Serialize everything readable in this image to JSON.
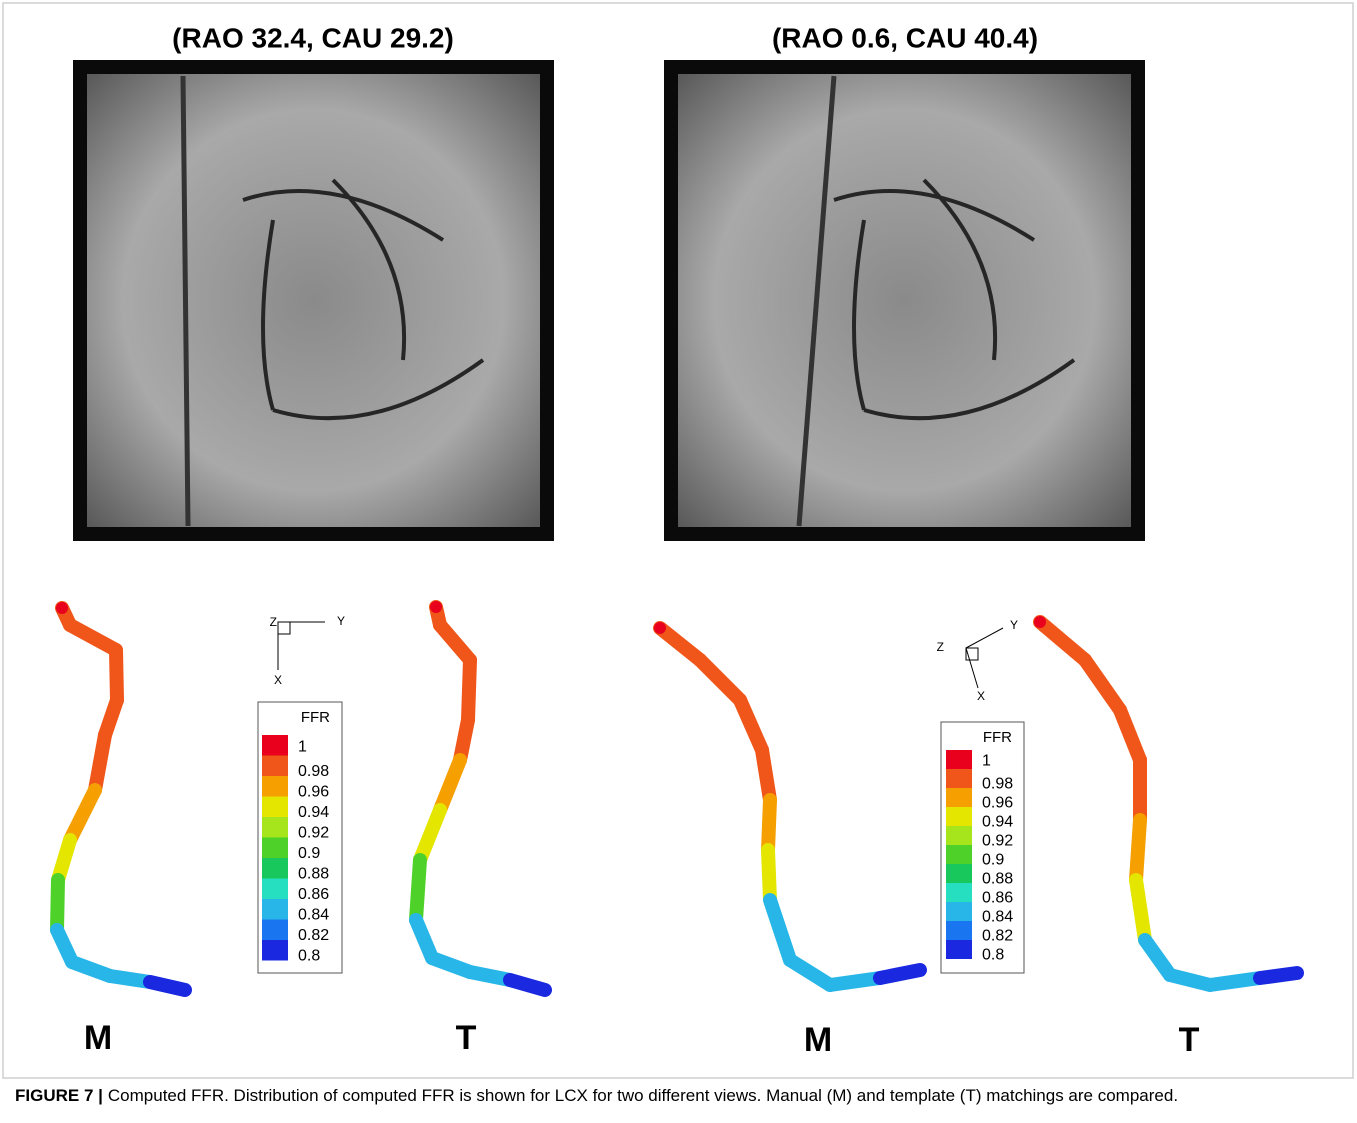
{
  "panels": [
    {
      "title": "(RAO 32.4, CAU 29.2)",
      "axes": {
        "z": "Z",
        "y": "Y",
        "x": "X"
      },
      "legend": {
        "title": "FFR",
        "labels": [
          "1",
          "0.98",
          "0.96",
          "0.94",
          "0.92",
          "0.9",
          "0.88",
          "0.86",
          "0.84",
          "0.82",
          "0.8"
        ]
      },
      "models": [
        "M",
        "T"
      ]
    },
    {
      "title": "(RAO 0.6, CAU 40.4)",
      "axes": {
        "z": "Z",
        "y": "Y",
        "x": "X"
      },
      "legend": {
        "title": "FFR",
        "labels": [
          "1",
          "0.98",
          "0.96",
          "0.94",
          "0.92",
          "0.9",
          "0.88",
          "0.86",
          "0.84",
          "0.82",
          "0.8"
        ]
      },
      "models": [
        "M",
        "T"
      ]
    }
  ],
  "caption": {
    "label": "FIGURE 7 |",
    "text": "Computed FFR. Distribution of computed FFR is shown for LCX for two different views. Manual (M) and template (T) matchings are compared."
  }
}
